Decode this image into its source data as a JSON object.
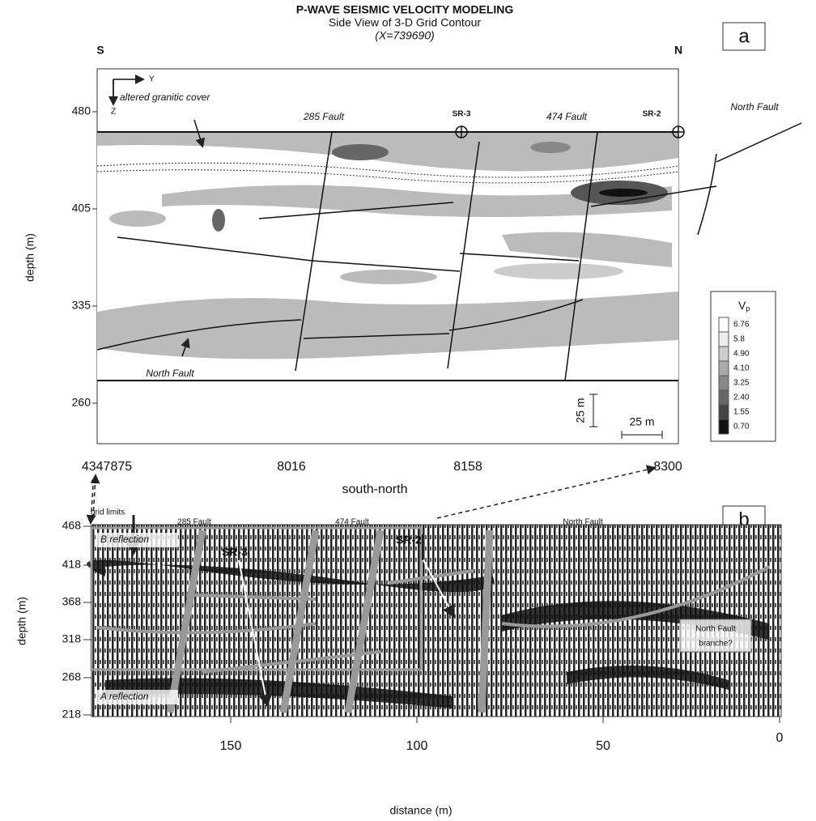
{
  "panel_a": {
    "label": "a",
    "title": "P-WAVE SEISMIC VELOCITY MODELING",
    "subtitle": "Side View of 3-D Grid Contour",
    "coordinate": "(X=739690)",
    "south": "S",
    "north": "N",
    "axis_y": "Y",
    "axis_z": "Z",
    "y_axis_label": "depth (m)",
    "y_ticks": [
      "480",
      "405",
      "335",
      "260"
    ],
    "x_ticks": [
      "4347875",
      "8016",
      "8158",
      "8300"
    ],
    "x_axis_label": "south-north",
    "annotations": [
      "altered granitic cover",
      "285 Fault",
      "SR-3",
      "474 Fault",
      "SR-2",
      "North Fault",
      "North Fault"
    ],
    "legend": {
      "title": "V",
      "subscript": "p",
      "levels": [
        "6.76",
        "5.8",
        "4.90",
        "4.10",
        "3.25",
        "2.40",
        "1.55",
        "0.70"
      ]
    },
    "scale_bars": [
      "25 m",
      "25 m"
    ]
  },
  "panel_b": {
    "label": "b",
    "y_axis_label": "depth (m)",
    "y_ticks": [
      "468",
      "418",
      "368",
      "318",
      "268",
      "218"
    ],
    "x_ticks": [
      "150",
      "100",
      "50",
      "0"
    ],
    "x_axis_label": "distance (m)",
    "annotations": [
      "grid limits",
      "285 Fault",
      "474 Fault",
      "North Fault",
      "SR-3",
      "SR-2",
      "B reflection",
      "A reflection",
      "North Fault",
      "branche?"
    ]
  }
}
